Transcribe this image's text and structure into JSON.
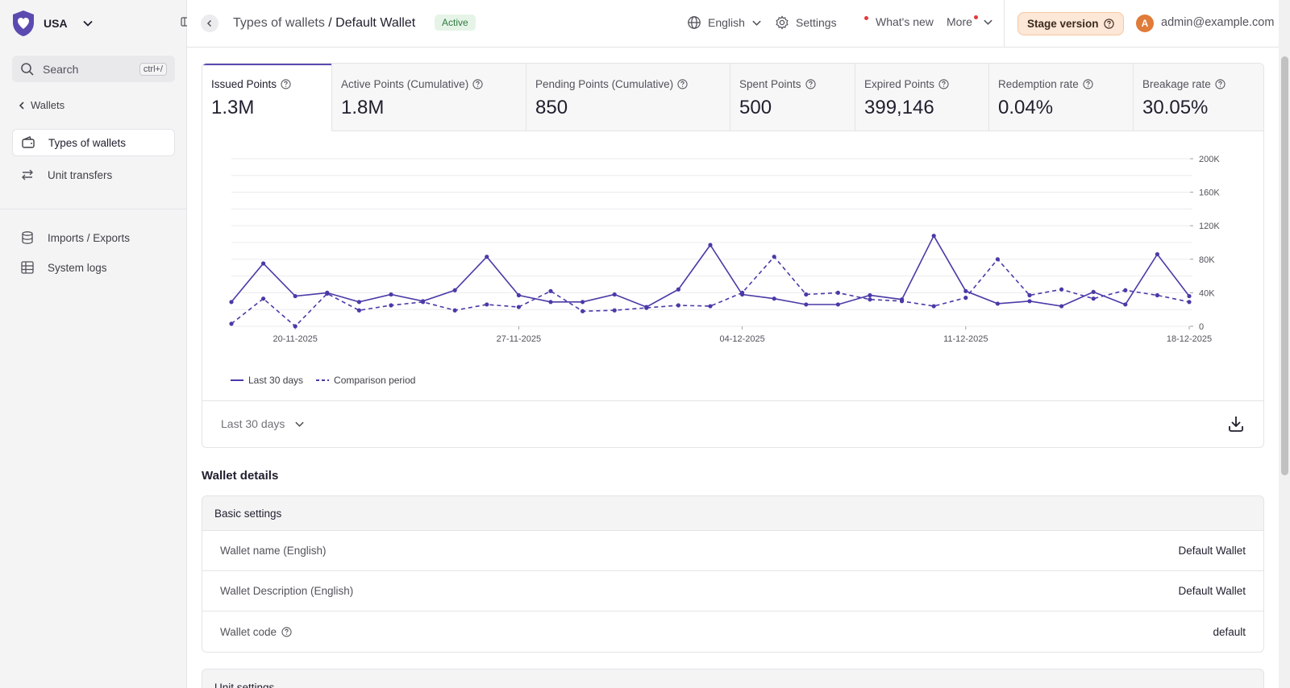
{
  "sidebar": {
    "country": "USA",
    "search_placeholder": "Search",
    "search_shortcut": "ctrl+/",
    "back_label": "Wallets",
    "items": [
      {
        "label": "Types of wallets",
        "icon": "wallet-icon",
        "active": true
      },
      {
        "label": "Unit transfers",
        "icon": "transfer-icon",
        "active": false
      },
      {
        "label": "Imports / Exports",
        "icon": "database-icon",
        "active": false
      },
      {
        "label": "System logs",
        "icon": "table-icon",
        "active": false
      }
    ]
  },
  "header": {
    "breadcrumb_parent": "Types of wallets",
    "breadcrumb_sep": " / ",
    "breadcrumb_current": "Default Wallet",
    "status": "Active",
    "language": "English",
    "settings": "Settings",
    "whats_new": "What's new",
    "more": "More",
    "stage": "Stage version",
    "avatar_initial": "A",
    "user_email": "admin@example.com"
  },
  "stats": [
    {
      "label": "Issued Points",
      "value": "1.3M",
      "active": true
    },
    {
      "label": "Active Points (Cumulative)",
      "value": "1.8M",
      "active": false
    },
    {
      "label": "Pending Points (Cumulative)",
      "value": "850",
      "active": false
    },
    {
      "label": "Spent Points",
      "value": "500",
      "active": false
    },
    {
      "label": "Expired Points",
      "value": "399,146",
      "active": false
    },
    {
      "label": "Redemption rate",
      "value": "0.04%",
      "active": false
    },
    {
      "label": "Breakage rate",
      "value": "30.05%",
      "active": false
    }
  ],
  "chart_data": {
    "type": "line",
    "x": [
      "18-11-2025",
      "19-11-2025",
      "20-11-2025",
      "21-11-2025",
      "22-11-2025",
      "23-11-2025",
      "24-11-2025",
      "25-11-2025",
      "26-11-2025",
      "27-11-2025",
      "28-11-2025",
      "29-11-2025",
      "30-11-2025",
      "01-12-2025",
      "02-12-2025",
      "03-12-2025",
      "04-12-2025",
      "05-12-2025",
      "06-12-2025",
      "07-12-2025",
      "08-12-2025",
      "09-12-2025",
      "10-12-2025",
      "11-12-2025",
      "12-12-2025",
      "13-12-2025",
      "14-12-2025",
      "15-12-2025",
      "16-12-2025",
      "17-12-2025",
      "18-12-2025"
    ],
    "x_ticks": [
      "20-11-2025",
      "27-11-2025",
      "04-12-2025",
      "11-12-2025",
      "18-12-2025"
    ],
    "y_ticks": [
      "0",
      "40K",
      "80K",
      "120K",
      "160K",
      "200K"
    ],
    "ylim": [
      0,
      200000
    ],
    "series": [
      {
        "name": "Last 30 days",
        "style": "solid",
        "color": "#4a3aa7",
        "values": [
          29000,
          75000,
          36000,
          40000,
          29000,
          38000,
          30000,
          43000,
          83000,
          37000,
          29000,
          29000,
          38000,
          23000,
          44000,
          97000,
          38000,
          33000,
          26000,
          26000,
          37000,
          32000,
          108000,
          42000,
          27000,
          30000,
          24000,
          41000,
          26000,
          86000,
          36000
        ]
      },
      {
        "name": "Comparison period",
        "style": "dashed",
        "color": "#4a3aa7",
        "values": [
          3000,
          33000,
          0,
          39000,
          19000,
          25000,
          29000,
          19000,
          26000,
          23000,
          42000,
          18000,
          19000,
          22000,
          25000,
          24000,
          40000,
          83000,
          38000,
          40000,
          32000,
          30000,
          24000,
          34000,
          80000,
          37000,
          44000,
          33000,
          43000,
          37000,
          29000
        ]
      }
    ]
  },
  "period": "Last 30 days",
  "details": {
    "section_title": "Wallet details",
    "group_title": "Basic settings",
    "rows": [
      {
        "label": "Wallet name (English)",
        "value": "Default Wallet"
      },
      {
        "label": "Wallet Description (English)",
        "value": "Default Wallet"
      },
      {
        "label": "Wallet code",
        "value": "default"
      }
    ],
    "next_group_title": "Unit settings"
  },
  "colors": {
    "accent": "#4a3aa7",
    "active_badge_bg": "#e6f4e8",
    "stage_bg": "#fde7d6"
  }
}
